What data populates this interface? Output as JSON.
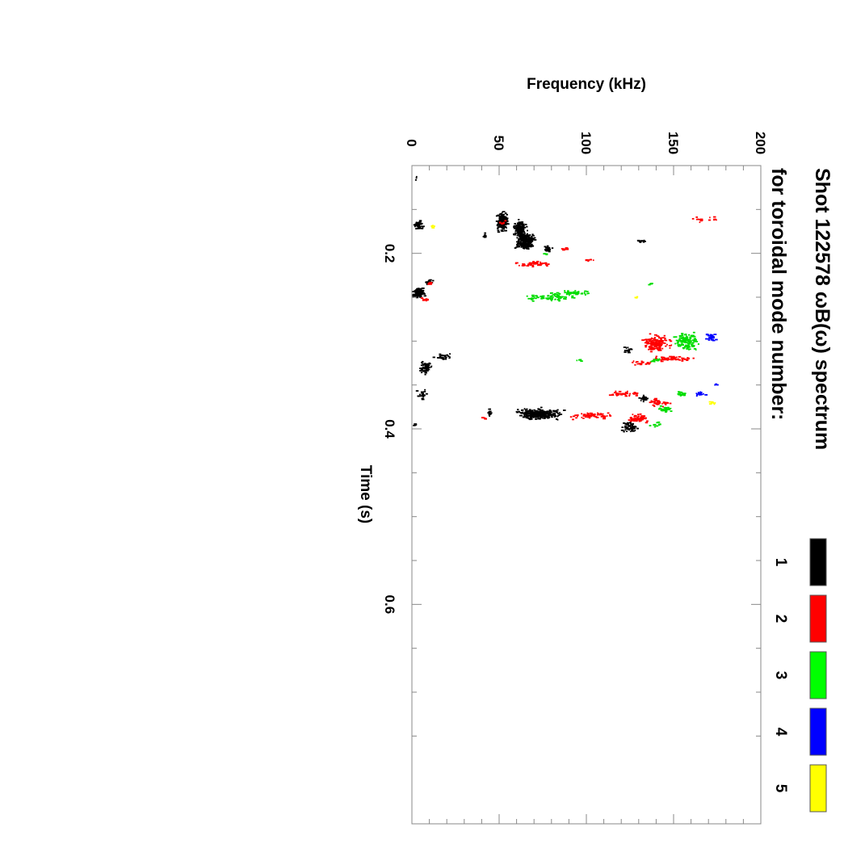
{
  "chart_data": {
    "type": "scatter",
    "title": "Shot 122578 ωB(ω) spectrum",
    "subtitle": "for toroidal mode number:",
    "xlabel": "Time (s)",
    "ylabel": "Frequency (kHz)",
    "xlim": [
      0.1,
      0.85
    ],
    "ylim": [
      0,
      200
    ],
    "x_ticks": [
      "0.2",
      "0.4",
      "0.6"
    ],
    "x_tick_values": [
      0.2,
      0.4,
      0.6
    ],
    "y_ticks": [
      "0",
      "50",
      "100",
      "150",
      "200"
    ],
    "y_tick_values": [
      0,
      50,
      100,
      150,
      200
    ],
    "grid": false,
    "legend_position": "right",
    "series": [
      {
        "name": "1",
        "color": "#000000",
        "clusters": [
          [
            0.114,
            2,
            0.004,
            1,
            3
          ],
          [
            0.18,
            42,
            0.005,
            1,
            8
          ],
          [
            0.165,
            52,
            0.014,
            4,
            160
          ],
          [
            0.172,
            62,
            0.012,
            5,
            120
          ],
          [
            0.185,
            65,
            0.013,
            7,
            220
          ],
          [
            0.195,
            78,
            0.006,
            3,
            30
          ],
          [
            0.168,
            4,
            0.006,
            3,
            50
          ],
          [
            0.245,
            4,
            0.008,
            4,
            120
          ],
          [
            0.233,
            10,
            0.004,
            3,
            20
          ],
          [
            0.318,
            18,
            0.004,
            6,
            30
          ],
          [
            0.33,
            8,
            0.01,
            5,
            60
          ],
          [
            0.36,
            6,
            0.008,
            4,
            20
          ],
          [
            0.31,
            124,
            0.004,
            3,
            20
          ],
          [
            0.383,
            73,
            0.008,
            16,
            320
          ],
          [
            0.383,
            45,
            0.006,
            3,
            12
          ],
          [
            0.398,
            125,
            0.008,
            6,
            60
          ],
          [
            0.365,
            133,
            0.005,
            4,
            30
          ],
          [
            0.186,
            132,
            0.002,
            4,
            12
          ],
          [
            0.395,
            2,
            0.003,
            1,
            3
          ]
        ]
      },
      {
        "name": "2",
        "color": "#ff0000",
        "clusters": [
          [
            0.162,
            168,
            0.004,
            10,
            16
          ],
          [
            0.165,
            52,
            0.003,
            3,
            8
          ],
          [
            0.212,
            70,
            0.004,
            14,
            45
          ],
          [
            0.208,
            102,
            0.002,
            6,
            10
          ],
          [
            0.195,
            88,
            0.002,
            4,
            8
          ],
          [
            0.252,
            8,
            0.003,
            3,
            10
          ],
          [
            0.303,
            140,
            0.012,
            10,
            150
          ],
          [
            0.32,
            150,
            0.004,
            18,
            60
          ],
          [
            0.325,
            132,
            0.003,
            10,
            20
          ],
          [
            0.36,
            122,
            0.004,
            14,
            40
          ],
          [
            0.37,
            142,
            0.006,
            8,
            40
          ],
          [
            0.385,
            103,
            0.005,
            14,
            60
          ],
          [
            0.388,
            130,
            0.007,
            8,
            60
          ],
          [
            0.235,
            10,
            0.003,
            2,
            8
          ],
          [
            0.388,
            42,
            0.002,
            3,
            6
          ]
        ]
      },
      {
        "name": "3",
        "color": "#00dd00",
        "clusters": [
          [
            0.25,
            80,
            0.005,
            18,
            70
          ],
          [
            0.245,
            93,
            0.004,
            12,
            40
          ],
          [
            0.3,
            158,
            0.012,
            9,
            120
          ],
          [
            0.322,
            140,
            0.004,
            6,
            15
          ],
          [
            0.36,
            155,
            0.004,
            6,
            20
          ],
          [
            0.378,
            145,
            0.005,
            6,
            25
          ],
          [
            0.395,
            140,
            0.004,
            5,
            12
          ],
          [
            0.201,
            77,
            0.002,
            2,
            5
          ],
          [
            0.235,
            137,
            0.002,
            2,
            3
          ],
          [
            0.322,
            96,
            0.002,
            3,
            4
          ]
        ]
      },
      {
        "name": "4",
        "color": "#0000ff",
        "clusters": [
          [
            0.296,
            172,
            0.006,
            6,
            28
          ],
          [
            0.36,
            165,
            0.004,
            6,
            14
          ],
          [
            0.35,
            175,
            0.002,
            2,
            3
          ]
        ]
      },
      {
        "name": "5",
        "color": "#ffff00",
        "clusters": [
          [
            0.17,
            12,
            0.003,
            1,
            5
          ],
          [
            0.25,
            128,
            0.002,
            2,
            3
          ],
          [
            0.37,
            172,
            0.003,
            4,
            8
          ]
        ]
      }
    ]
  },
  "legend": [
    {
      "label": "1",
      "color": "#000000"
    },
    {
      "label": "2",
      "color": "#ff0000"
    },
    {
      "label": "3",
      "color": "#00ff00"
    },
    {
      "label": "4",
      "color": "#0000ff"
    },
    {
      "label": "5",
      "color": "#ffff00"
    }
  ]
}
